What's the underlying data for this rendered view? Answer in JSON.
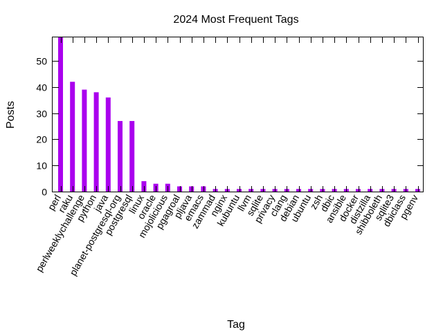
{
  "chart_data": {
    "type": "bar",
    "title": "2024 Most Frequent Tags",
    "xlabel": "Tag",
    "ylabel": "Posts",
    "ylim": [
      0,
      59
    ],
    "yticks": [
      0,
      10,
      20,
      30,
      40,
      50
    ],
    "grid": false,
    "legend": "none",
    "bar_color": "#aa00ee",
    "categories": [
      "perl",
      "raku",
      "perlweeklychallenge",
      "python",
      "java",
      "planet-postgresql-org",
      "postgresql",
      "linux",
      "oracle",
      "mojolicious",
      "pgagroal",
      "pljava",
      "emacs",
      "zammad",
      "nginx",
      "kubuntu",
      "llvm",
      "sqlite",
      "privacy",
      "clang",
      "debian",
      "ubuntu",
      "zsh",
      "dbic",
      "ansible",
      "docker",
      "distzilla",
      "shibboleth",
      "sqlite3",
      "dbiclass",
      "pgenv"
    ],
    "values": [
      59,
      42,
      39,
      38,
      36,
      27,
      27,
      4,
      3,
      3,
      2,
      2,
      2,
      1,
      1,
      1,
      1,
      1,
      1,
      1,
      1,
      1,
      1,
      1,
      1,
      1,
      1,
      1,
      1,
      1,
      1
    ]
  }
}
